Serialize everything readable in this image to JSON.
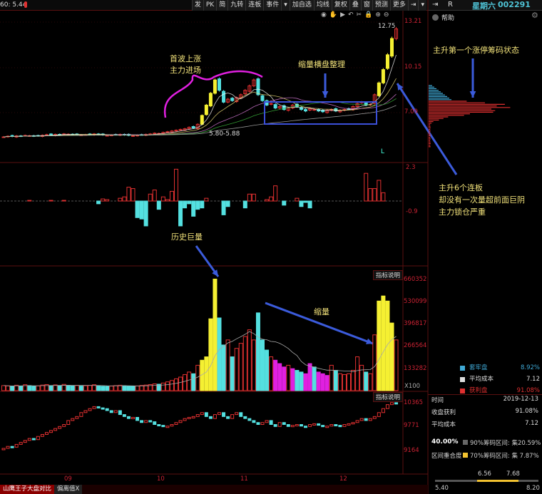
{
  "header": {
    "ma_label": "60: 5.44",
    "weekday": "星期六",
    "code": "002291",
    "pin": "⇥",
    "r_label": "R"
  },
  "toolbar": [
    "发",
    "PK",
    "简",
    "九转",
    "连板",
    "事件",
    "▾",
    "加自选",
    "均线",
    "复权",
    "叠",
    "窗",
    "预测",
    "更多",
    "⇥",
    "▾"
  ],
  "chart_tools": [
    "eye-icon",
    "hand-icon",
    "play-icon",
    "undo-icon",
    "scissors-icon",
    "lock-icon",
    "zoom-in-icon",
    "zoom-out-icon"
  ],
  "help": {
    "label": "帮助"
  },
  "price_axis": {
    "ticks": [
      "13.21",
      "10.15",
      "7.09"
    ],
    "high_label": "12.75",
    "low_label": "5.80-5.88",
    "marker": "L"
  },
  "macd_axis": {
    "ticks": [
      "2.3",
      "-0.9"
    ]
  },
  "volume_axis": {
    "ticks": [
      "660352",
      "530099",
      "396817",
      "266564",
      "133282"
    ],
    "unit": "X100",
    "button": "指标说明"
  },
  "index_axis": {
    "ticks": [
      "10365",
      "9771",
      "9164"
    ],
    "button": "指标说明"
  },
  "date_axis": [
    "09",
    "10",
    "11",
    "12"
  ],
  "annotations": {
    "first_wave": [
      "首波上涨",
      "主力进场"
    ],
    "consolidation": "缩量横盘整理",
    "chip_state": "主升第一个涨停筹码状态",
    "limit_ups": [
      "主升6个连板",
      "却没有一次量超前面巨阴",
      "主力锁仓严重"
    ],
    "history_volume": "历史巨量",
    "shrink": "缩量"
  },
  "chip_panel": {
    "legend": [
      {
        "label": "套牢盘",
        "value": "8.92%",
        "color": "#3fa9d6"
      },
      {
        "label": "平均成本",
        "value": "7.12",
        "color": "#dddddd"
      },
      {
        "label": "获利盘",
        "value": "91.08%",
        "color": "#e03030"
      }
    ],
    "rows": [
      {
        "label": "时间",
        "value": "2019-12-13"
      },
      {
        "label": "收盘获利",
        "value": "91.08%"
      },
      {
        "label": "平均成本",
        "value": "7.12"
      }
    ],
    "overlap_pct": "40.00%",
    "overlap_label": "区间重合度",
    "range90": "90%筹码区间: 集20.59%",
    "range70": "70%筹码区间: 集 7.87%",
    "range_low": "5.40",
    "range_high": "8.20",
    "band_low": "6.56",
    "band_high": "7.68"
  },
  "tabs": [
    "山鹰王子大盘对比",
    "偏离值X"
  ],
  "colors": {
    "up": "#e03030",
    "down": "#54e0e0",
    "limit": "#f5f032",
    "magenta": "#e020e0",
    "arrow": "#3b5bdb",
    "box": "#3b4fd8"
  },
  "chart_data": {
    "type": "candlestick",
    "close": [
      5.45,
      5.5,
      5.48,
      5.52,
      5.5,
      5.55,
      5.53,
      5.5,
      5.52,
      5.56,
      5.6,
      5.58,
      5.62,
      5.6,
      5.65,
      5.63,
      5.6,
      5.62,
      5.58,
      5.6,
      5.62,
      5.65,
      5.6,
      5.58,
      5.55,
      5.57,
      5.6,
      5.62,
      5.58,
      5.55,
      5.53,
      5.56,
      5.6,
      5.62,
      5.65,
      5.7,
      5.68,
      5.75,
      5.8,
      5.85,
      5.9,
      5.95,
      6.0,
      6.1,
      6.05,
      6.3,
      6.9,
      7.6,
      8.4,
      9.3,
      8.6,
      7.8,
      8.0,
      7.9,
      8.1,
      8.3,
      8.6,
      8.9,
      9.3,
      8.3,
      7.9,
      7.6,
      7.7,
      7.4,
      7.5,
      7.3,
      7.4,
      7.6,
      7.5,
      7.3,
      7.2,
      7.35,
      7.3,
      7.2,
      7.15,
      7.25,
      7.3,
      7.2,
      7.25,
      7.3,
      7.35,
      7.5,
      7.7,
      7.8,
      7.6,
      7.65,
      8.3,
      9.1,
      10.0,
      11.0,
      12.1,
      12.75
    ],
    "volume": [
      30000,
      28000,
      25000,
      32000,
      27000,
      35000,
      30000,
      26000,
      28000,
      33000,
      36000,
      30000,
      34000,
      29000,
      37000,
      31000,
      28000,
      30000,
      27000,
      29000,
      31000,
      35000,
      28000,
      26000,
      25000,
      27000,
      30000,
      32000,
      29000,
      27000,
      26000,
      28000,
      31000,
      33000,
      36000,
      40000,
      38000,
      45000,
      52000,
      60000,
      70000,
      80000,
      95000,
      110000,
      100000,
      150000,
      180000,
      200000,
      425000,
      660000,
      430000,
      270000,
      300000,
      200000,
      250000,
      280000,
      320000,
      360000,
      300000,
      460000,
      300000,
      240000,
      200000,
      180000,
      160000,
      140000,
      150000,
      130000,
      120000,
      110000,
      100000,
      160000,
      140000,
      110000,
      100000,
      90000,
      150000,
      120000,
      100000,
      95000,
      100000,
      120000,
      200000,
      150000,
      110000,
      100000,
      330000,
      530000,
      560000,
      530000,
      400000,
      300000
    ],
    "magenta_idx": [
      63,
      64,
      65,
      67,
      70,
      71,
      73,
      74,
      75
    ],
    "macd": [
      0,
      0,
      0,
      0,
      0,
      0,
      0.05,
      0,
      0,
      0,
      0,
      0.05,
      0,
      0,
      0.05,
      0,
      0,
      0,
      0,
      0,
      0,
      0,
      -0.2,
      0.15,
      0.1,
      0,
      0,
      0.2,
      0.3,
      1.0,
      0.9,
      -1.2,
      -1.3,
      -1.8,
      0.5,
      0.8,
      -0.6,
      0.3,
      0.1,
      0.7,
      2.3,
      -1.8,
      -0.5,
      -0.2,
      -1.1,
      -0.6,
      -0.5,
      0.2,
      0,
      0,
      0,
      -1.0,
      -0.4,
      0,
      0,
      0,
      -0.5,
      0.5,
      0.5,
      0,
      0,
      0.1,
      0.3,
      1.1,
      0,
      -0.3,
      0,
      0,
      0.2,
      -0.4,
      -0.1,
      -0.5,
      0,
      0,
      0,
      0,
      0,
      0,
      0,
      0,
      0,
      0,
      0,
      0,
      2.0,
      0.9,
      0.9,
      1.5,
      0.6,
      0,
      0,
      0
    ],
    "index": [
      9200,
      9250,
      9230,
      9300,
      9350,
      9400,
      9450,
      9420,
      9500,
      9550,
      9600,
      9650,
      9700,
      9750,
      9800,
      9900,
      9950,
      10000,
      10100,
      10150,
      10200,
      10250,
      10220,
      10200,
      10150,
      10100,
      10150,
      10050,
      10000,
      9950,
      9980,
      9900,
      9850,
      9900,
      9870,
      9800,
      9780,
      9750,
      9760,
      9800,
      9850,
      9900,
      9950,
      9980,
      10000,
      10050,
      10100,
      10000,
      9950,
      10050,
      10100,
      10000,
      9950,
      10050,
      10100,
      10000,
      9950,
      9900,
      9850,
      9800,
      9850,
      9900,
      9800,
      9750,
      9850,
      9800,
      9750,
      9780,
      9800,
      9760,
      9750,
      9800,
      9820,
      9780,
      9750,
      9760,
      9800,
      9780,
      9750,
      9800,
      9820,
      9850,
      9900,
      9950,
      9900,
      9950,
      10000,
      10100,
      10200,
      10300,
      10350,
      10340
    ],
    "ylim_price": [
      5.2,
      13.4
    ]
  }
}
